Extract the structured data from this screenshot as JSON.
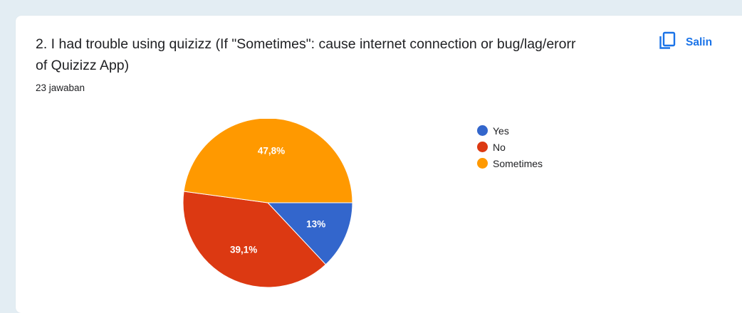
{
  "question": {
    "title": "2. I had trouble using quizizz (If \"Sometimes\": cause internet connection or bug/lag/erorr of Quizizz App)",
    "response_count": "23 jawaban"
  },
  "toolbar": {
    "copy_label": "Salin",
    "copy_icon": "copy-icon"
  },
  "chart_data": {
    "type": "pie",
    "categories": [
      "Yes",
      "No",
      "Sometimes"
    ],
    "values": [
      13,
      39.1,
      47.8
    ],
    "labels": [
      "13%",
      "39,1%",
      "47,8%"
    ],
    "colors": [
      "#3366cc",
      "#dc3912",
      "#ff9900"
    ],
    "legend": "right"
  }
}
